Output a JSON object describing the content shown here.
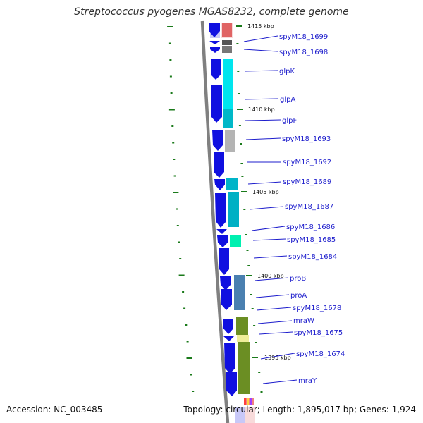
{
  "title": "Streptococcus pyogenes MGAS8232, complete genome",
  "footer": {
    "accession": "Accession: NC_003485",
    "stats": "Topology: circular; Length: 1,895,017 bp; Genes: 1,924"
  },
  "kbp_marks": [
    "1415 kbp",
    "1410 kbp",
    "1405 kbp",
    "1400 kbp",
    "1395 kbp"
  ],
  "genes": [
    "spyM18_1699",
    "spyM18_1698",
    "glpK",
    "glpA",
    "glpF",
    "spyM18_1693",
    "spyM18_1692",
    "spyM18_1689",
    "spyM18_1687",
    "spyM18_1686",
    "spyM18_1685",
    "spyM18_1684",
    "proB",
    "proA",
    "spyM18_1678",
    "mraW",
    "spyM18_1675",
    "spyM18_1674",
    "mraY"
  ],
  "colors": {
    "gene_label": "#1c1ccc",
    "cds_arrow": "#1010e0",
    "backbone": "#808080",
    "tick": "#1a7a1a"
  }
}
